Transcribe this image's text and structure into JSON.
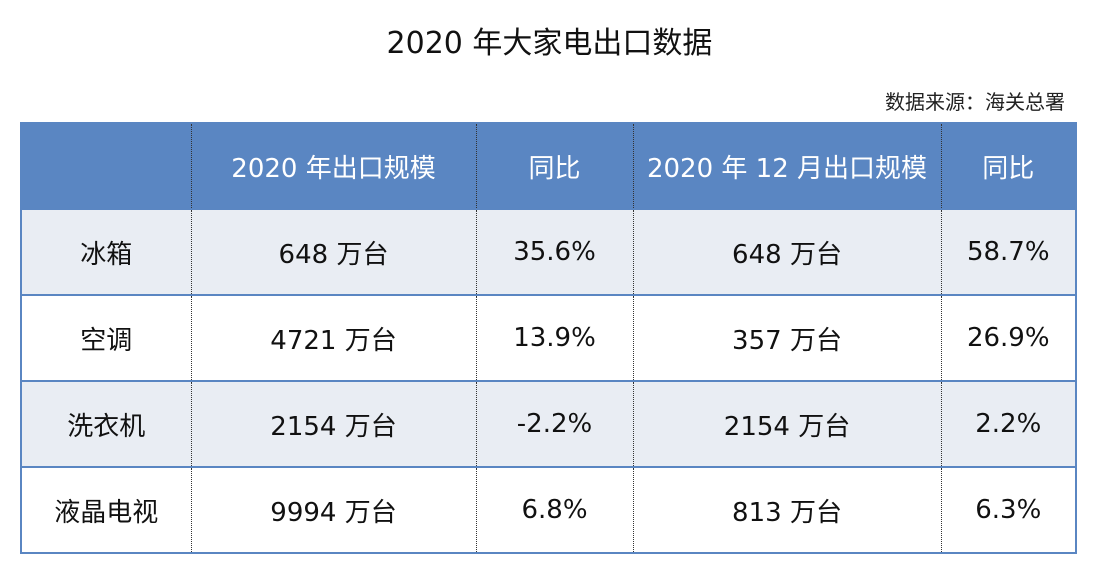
{
  "title": "2020 年大家电出口数据",
  "source": "数据来源：海关总署",
  "table": {
    "header": [
      "2020 年出口规模",
      "同比",
      "2020 年 12 月出口规模",
      "同比"
    ],
    "rows": [
      [
        "冰箱",
        "648 万台",
        "35.6%",
        "648 万台",
        "58.7%"
      ],
      [
        "空调",
        "4721 万台",
        "13.9%",
        "357 万台",
        "26.9%"
      ],
      [
        "洗衣机",
        "2154 万台",
        "-2.2%",
        "2154 万台",
        "2.2%"
      ],
      [
        "液晶电视",
        "9994 万台",
        "6.8%",
        "813 万台",
        "6.3%"
      ]
    ]
  }
}
